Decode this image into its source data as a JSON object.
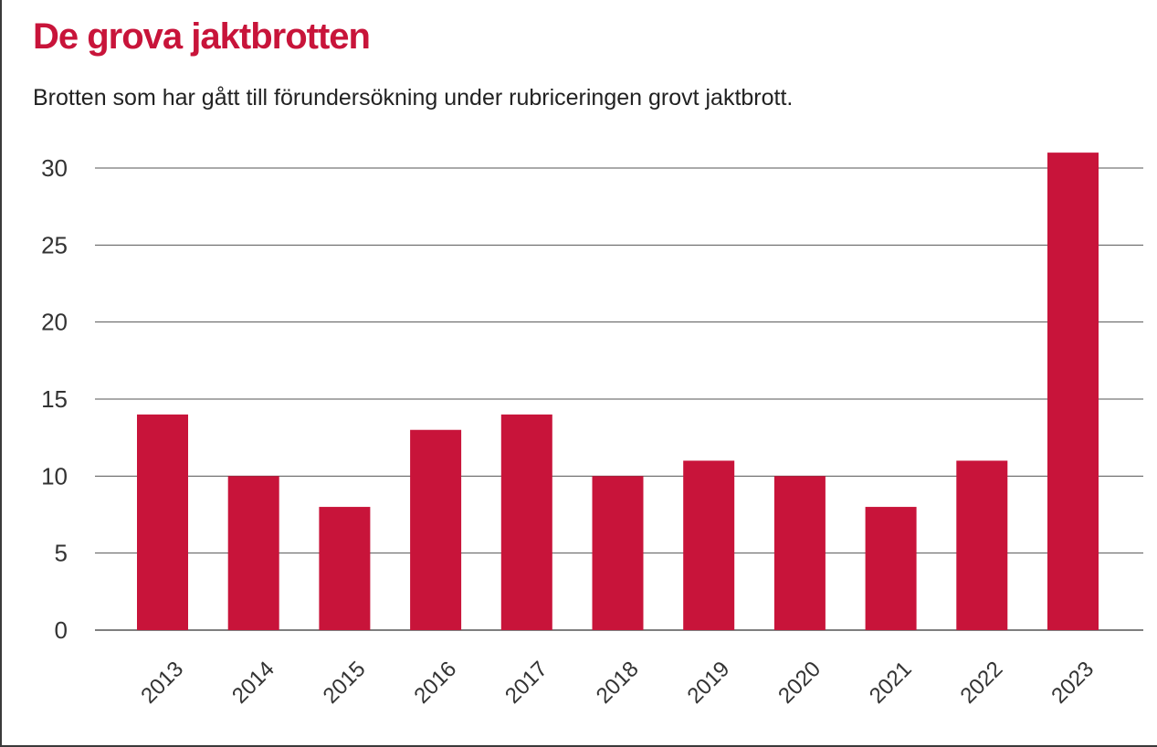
{
  "title": "De grova jaktbrotten",
  "subtitle": "Brotten som har gått till förundersökning under rubriceringen grovt jaktbrott.",
  "colors": {
    "accent": "#c8143a",
    "bar": "#c8143a",
    "grid": "#555555",
    "text": "#222222"
  },
  "chart_data": {
    "type": "bar",
    "title": "De grova jaktbrotten",
    "subtitle": "Brotten som har gått till förundersökning under rubriceringen grovt jaktbrott.",
    "xlabel": "",
    "ylabel": "",
    "categories": [
      "2013",
      "2014",
      "2015",
      "2016",
      "2017",
      "2018",
      "2019",
      "2020",
      "2021",
      "2022",
      "2023"
    ],
    "values": [
      14,
      10,
      8,
      13,
      14,
      10,
      11,
      10,
      8,
      11,
      31
    ],
    "ylim": [
      0,
      30
    ],
    "yticks": [
      0,
      5,
      10,
      15,
      20,
      25,
      30
    ],
    "grid": true,
    "legend": "none"
  }
}
